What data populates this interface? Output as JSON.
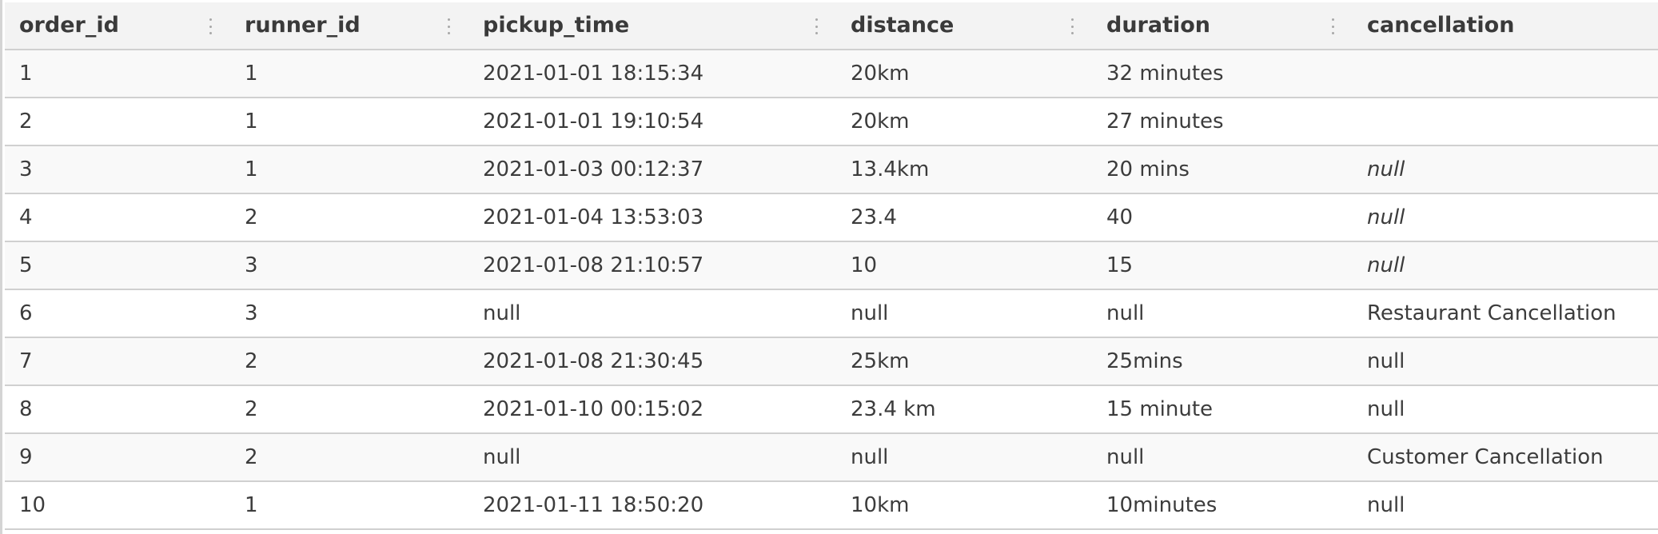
{
  "table": {
    "columns": [
      "order_id",
      "runner_id",
      "pickup_time",
      "distance",
      "duration",
      "cancellation"
    ],
    "rows": [
      [
        "1",
        "1",
        "2021-01-01 18:15:34",
        "20km",
        "32 minutes",
        ""
      ],
      [
        "2",
        "1",
        "2021-01-01 19:10:54",
        "20km",
        "27 minutes",
        ""
      ],
      [
        "3",
        "1",
        "2021-01-03 00:12:37",
        "13.4km",
        "20 mins",
        "null"
      ],
      [
        "4",
        "2",
        "2021-01-04 13:53:03",
        "23.4",
        "40",
        "null"
      ],
      [
        "5",
        "3",
        "2021-01-08 21:10:57",
        "10",
        "15",
        "null"
      ],
      [
        "6",
        "3",
        "null",
        "null",
        "null",
        "Restaurant Cancellation"
      ],
      [
        "7",
        "2",
        "2021-01-08 21:30:45",
        "25km",
        "25mins",
        "null"
      ],
      [
        "8",
        "2",
        "2021-01-10 00:15:02",
        "23.4 km",
        "15 minute",
        "null"
      ],
      [
        "9",
        "2",
        "null",
        "null",
        "null",
        "Customer Cancellation"
      ],
      [
        "10",
        "1",
        "2021-01-11 18:50:20",
        "10km",
        "10minutes",
        "null"
      ]
    ],
    "italic_null_rows": [
      2,
      3,
      4
    ],
    "icons": {
      "column_resize_handle": "vertical-ellipsis-icon"
    },
    "colors": {
      "header_bg": "#f3f3f3",
      "row_alt_bg": "#f9f9f9",
      "border": "#d0d0d0",
      "text": "#3c3c3c"
    }
  }
}
